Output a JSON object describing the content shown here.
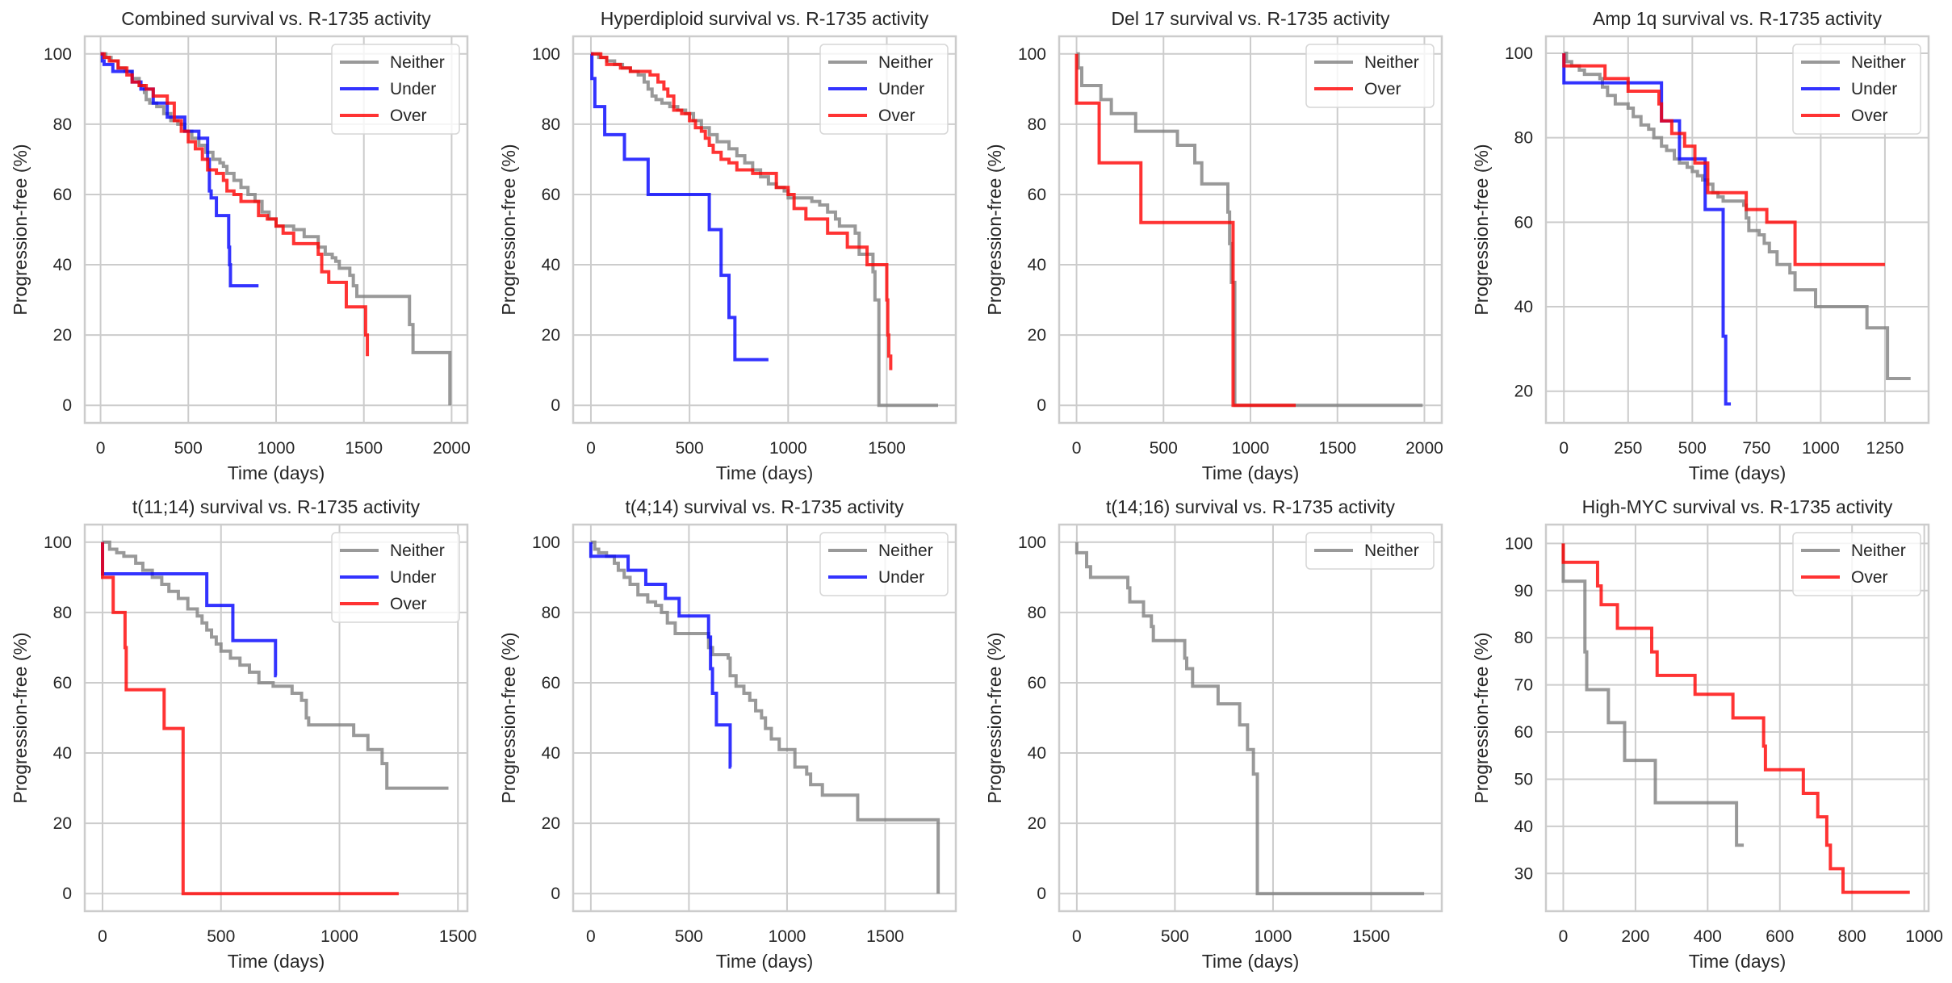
{
  "figure": {
    "series_colors": {
      "Neither": "#808080",
      "Under": "#0000ff",
      "Over": "#ff0000"
    }
  },
  "chart_data": [
    {
      "type": "line",
      "title": "Combined survival vs. R-1735 activity",
      "xlabel": "Time (days)",
      "ylabel": "Progression-free (%)",
      "xlim": [
        -90,
        2090
      ],
      "ylim": [
        -5,
        105
      ],
      "xticks": [
        0,
        500,
        1000,
        1500,
        2000
      ],
      "yticks": [
        0,
        20,
        40,
        60,
        80,
        100
      ],
      "grid": true,
      "legend": "top-right",
      "series": [
        {
          "name": "Neither",
          "x": [
            0,
            30,
            60,
            100,
            140,
            180,
            220,
            250,
            260,
            280,
            320,
            360,
            400,
            440,
            480,
            520,
            560,
            600,
            640,
            680,
            700,
            720,
            760,
            800,
            840,
            880,
            920,
            960,
            1000,
            1080,
            1100,
            1120,
            1160,
            1200,
            1240,
            1280,
            1320,
            1340,
            1360,
            1420,
            1440,
            1460,
            1760,
            1780,
            1990
          ],
          "y": [
            100,
            99,
            98,
            96,
            95,
            93,
            91,
            89,
            87,
            86,
            85,
            83,
            81,
            80,
            78,
            76,
            74,
            72,
            70,
            69,
            68,
            66,
            64,
            62,
            60,
            58,
            55,
            53,
            51,
            51,
            50,
            50,
            48,
            48,
            45,
            43,
            42,
            41,
            39,
            37,
            34,
            31,
            23,
            15,
            0
          ]
        },
        {
          "name": "Under",
          "x": [
            0,
            10,
            20,
            70,
            160,
            180,
            230,
            280,
            300,
            380,
            440,
            480,
            560,
            610,
            620,
            630,
            660,
            700,
            730,
            735,
            740,
            900
          ],
          "y": [
            100,
            98,
            97,
            95,
            95,
            92,
            90,
            90,
            86,
            82,
            82,
            78,
            76,
            70,
            61,
            59,
            54,
            54,
            45,
            40,
            34,
            34
          ]
        },
        {
          "name": "Over",
          "x": [
            0,
            20,
            50,
            100,
            150,
            180,
            220,
            260,
            300,
            380,
            420,
            460,
            500,
            540,
            580,
            610,
            660,
            700,
            720,
            760,
            800,
            840,
            900,
            950,
            1000,
            1040,
            1100,
            1200,
            1240,
            1260,
            1300,
            1400,
            1500,
            1510,
            1520
          ],
          "y": [
            100,
            99,
            98,
            96,
            94,
            92,
            91,
            90,
            88,
            86,
            81,
            78,
            75,
            73,
            70,
            67,
            66,
            64,
            61,
            60,
            58,
            58,
            54,
            53,
            51,
            49,
            46,
            46,
            43,
            38,
            35,
            28,
            28,
            20,
            14
          ]
        }
      ]
    },
    {
      "type": "line",
      "title": "Hyperdiploid survival vs. R-1735 activity",
      "xlabel": "Time (days)",
      "ylabel": "Progression-free (%)",
      "xlim": [
        -90,
        1850
      ],
      "ylim": [
        -5,
        105
      ],
      "xticks": [
        0,
        500,
        1000,
        1500
      ],
      "yticks": [
        0,
        20,
        40,
        60,
        80,
        100
      ],
      "grid": true,
      "legend": "top-right",
      "series": [
        {
          "name": "Neither",
          "x": [
            0,
            40,
            80,
            120,
            160,
            200,
            240,
            270,
            290,
            310,
            330,
            360,
            400,
            440,
            480,
            520,
            560,
            600,
            640,
            700,
            740,
            780,
            820,
            860,
            900,
            940,
            980,
            1000,
            1100,
            1120,
            1160,
            1200,
            1240,
            1260,
            1300,
            1340,
            1360,
            1420,
            1430,
            1440,
            1460,
            1760
          ],
          "y": [
            100,
            99,
            98,
            97,
            96,
            95,
            94,
            92,
            90,
            88,
            87,
            86,
            85,
            84,
            83,
            81,
            79,
            77,
            75,
            73,
            71,
            69,
            67,
            65,
            63,
            62,
            61,
            59,
            59,
            58,
            57,
            55,
            53,
            51,
            51,
            49,
            43,
            43,
            38,
            30,
            0,
            0
          ]
        },
        {
          "name": "Under",
          "x": [
            0,
            5,
            20,
            70,
            170,
            290,
            600,
            660,
            700,
            730,
            900
          ],
          "y": [
            100,
            93,
            85,
            77,
            70,
            60,
            50,
            37,
            25,
            13,
            13
          ]
        },
        {
          "name": "Over",
          "x": [
            0,
            50,
            80,
            150,
            200,
            300,
            340,
            370,
            390,
            420,
            460,
            500,
            530,
            560,
            580,
            600,
            620,
            660,
            700,
            740,
            820,
            880,
            940,
            1000,
            1030,
            1090,
            1200,
            1300,
            1400,
            1500,
            1505,
            1510,
            1520
          ],
          "y": [
            100,
            99,
            97,
            96,
            95,
            94,
            92,
            90,
            88,
            84,
            83,
            81,
            79,
            78,
            76,
            74,
            72,
            70,
            69,
            67,
            66,
            66,
            62,
            60,
            56,
            53,
            49,
            45,
            40,
            30,
            20,
            14,
            10
          ]
        }
      ]
    },
    {
      "type": "line",
      "title": "Del 17 survival vs. R-1735 activity",
      "xlabel": "Time (days)",
      "ylabel": "Progression-free (%)",
      "xlim": [
        -100,
        2100
      ],
      "ylim": [
        -5,
        105
      ],
      "xticks": [
        0,
        500,
        1000,
        1500,
        2000
      ],
      "yticks": [
        0,
        20,
        40,
        60,
        80,
        100
      ],
      "grid": true,
      "legend": "top-right",
      "series": [
        {
          "name": "Neither",
          "x": [
            0,
            10,
            30,
            140,
            200,
            340,
            580,
            680,
            720,
            870,
            880,
            890,
            910,
            1990
          ],
          "y": [
            100,
            96,
            91,
            87,
            83,
            78,
            74,
            69,
            63,
            55,
            46,
            35,
            0,
            0
          ]
        },
        {
          "name": "Over",
          "x": [
            0,
            130,
            370,
            900,
            1260
          ],
          "y": [
            86,
            69,
            52,
            0,
            0
          ]
        }
      ]
    },
    {
      "type": "line",
      "title": "Amp 1q survival vs. R-1735 activity",
      "xlabel": "Time (days)",
      "ylabel": "Progression-free (%)",
      "xlim": [
        -70,
        1420
      ],
      "ylim": [
        12.5,
        104
      ],
      "xticks": [
        0,
        250,
        500,
        750,
        1000,
        1250
      ],
      "yticks": [
        20,
        40,
        60,
        80,
        100
      ],
      "grid": true,
      "legend": "top-right",
      "series": [
        {
          "name": "Neither",
          "x": [
            0,
            10,
            30,
            60,
            80,
            140,
            150,
            170,
            200,
            250,
            270,
            300,
            330,
            350,
            380,
            400,
            430,
            450,
            480,
            500,
            520,
            540,
            560,
            580,
            600,
            620,
            640,
            700,
            710,
            720,
            760,
            780,
            800,
            830,
            880,
            900,
            980,
            1180,
            1260,
            1350
          ],
          "y": [
            100,
            98,
            97,
            96,
            95,
            94,
            92,
            90,
            88,
            87,
            85,
            83,
            82,
            80,
            78,
            77,
            75,
            74,
            73,
            72,
            71,
            70,
            69,
            67,
            66,
            65,
            65,
            64,
            61,
            58,
            57,
            55,
            53,
            50,
            48,
            44,
            40,
            35,
            23,
            23
          ]
        },
        {
          "name": "Under",
          "x": [
            0,
            380,
            450,
            550,
            620,
            630,
            650
          ],
          "y": [
            93,
            84,
            75,
            63,
            33,
            17,
            17
          ]
        },
        {
          "name": "Over",
          "x": [
            0,
            160,
            250,
            370,
            380,
            420,
            470,
            510,
            560,
            710,
            790,
            900,
            1250
          ],
          "y": [
            97,
            94,
            91,
            88,
            84,
            81,
            78,
            74,
            67,
            63,
            60,
            50,
            50
          ]
        }
      ]
    },
    {
      "type": "line",
      "title": "t(11;14) survival vs. R-1735 activity",
      "xlabel": "Time (days)",
      "ylabel": "Progression-free (%)",
      "xlim": [
        -75,
        1540
      ],
      "ylim": [
        -5,
        105
      ],
      "xticks": [
        0,
        500,
        1000,
        1500
      ],
      "yticks": [
        0,
        20,
        40,
        60,
        80,
        100
      ],
      "grid": true,
      "legend": "top-right",
      "series": [
        {
          "name": "Neither",
          "x": [
            0,
            30,
            60,
            90,
            140,
            170,
            210,
            250,
            280,
            320,
            360,
            400,
            420,
            440,
            460,
            480,
            500,
            540,
            580,
            620,
            660,
            720,
            800,
            840,
            860,
            870,
            1060,
            1120,
            1180,
            1200,
            1460
          ],
          "y": [
            100,
            98,
            97,
            96,
            94,
            92,
            90,
            88,
            86,
            84,
            81,
            79,
            77,
            75,
            73,
            71,
            69,
            67,
            65,
            63,
            60,
            59,
            57,
            55,
            50,
            48,
            45,
            41,
            37,
            30,
            30
          ]
        },
        {
          "name": "Under",
          "x": [
            0,
            440,
            550,
            730,
            735
          ],
          "y": [
            91,
            82,
            72,
            62,
            62
          ]
        },
        {
          "name": "Over",
          "x": [
            0,
            45,
            95,
            100,
            260,
            340,
            1250
          ],
          "y": [
            90,
            80,
            70,
            58,
            47,
            0,
            0
          ]
        }
      ]
    },
    {
      "type": "line",
      "title": "t(4;14) survival vs. R-1735 activity",
      "xlabel": "Time (days)",
      "ylabel": "Progression-free (%)",
      "xlim": [
        -90,
        1860
      ],
      "ylim": [
        -5,
        105
      ],
      "xticks": [
        0,
        500,
        1000,
        1500
      ],
      "yticks": [
        0,
        20,
        40,
        60,
        80,
        100
      ],
      "grid": true,
      "legend": "top-right",
      "series": [
        {
          "name": "Neither",
          "x": [
            0,
            20,
            40,
            80,
            120,
            140,
            170,
            200,
            240,
            290,
            330,
            360,
            390,
            430,
            580,
            600,
            620,
            700,
            710,
            740,
            780,
            810,
            840,
            870,
            890,
            920,
            960,
            1040,
            1100,
            1120,
            1180,
            1360,
            1770
          ],
          "y": [
            100,
            98,
            97,
            96,
            94,
            92,
            90,
            88,
            85,
            83,
            82,
            80,
            77,
            74,
            74,
            70,
            68,
            67,
            62,
            59,
            57,
            55,
            52,
            50,
            47,
            44,
            41,
            36,
            34,
            31,
            28,
            21,
            0
          ]
        },
        {
          "name": "Under",
          "x": [
            0,
            190,
            280,
            380,
            450,
            600,
            610,
            620,
            640,
            710,
            715
          ],
          "y": [
            96,
            92,
            88,
            84,
            79,
            73,
            64,
            57,
            48,
            36,
            36
          ]
        }
      ]
    },
    {
      "type": "line",
      "title": "t(14;16) survival vs. R-1735 activity",
      "xlabel": "Time (days)",
      "ylabel": "Progression-free (%)",
      "xlim": [
        -90,
        1860
      ],
      "ylim": [
        -5,
        105
      ],
      "xticks": [
        0,
        500,
        1000,
        1500
      ],
      "yticks": [
        0,
        20,
        40,
        60,
        80,
        100
      ],
      "grid": true,
      "legend": "top-right",
      "series": [
        {
          "name": "Neither",
          "x": [
            0,
            50,
            60,
            70,
            260,
            270,
            340,
            380,
            390,
            550,
            560,
            590,
            720,
            830,
            870,
            900,
            910,
            920,
            1770
          ],
          "y": [
            97,
            93,
            93,
            90,
            87,
            83,
            79,
            76,
            72,
            67,
            64,
            59,
            54,
            48,
            41,
            34,
            34,
            0,
            0
          ]
        }
      ]
    },
    {
      "type": "line",
      "title": "High-MYC survival vs. R-1735 activity",
      "xlabel": "Time (days)",
      "ylabel": "Progression-free (%)",
      "xlim": [
        -48,
        1012
      ],
      "ylim": [
        22,
        104
      ],
      "xticks": [
        0,
        200,
        400,
        600,
        800,
        1000
      ],
      "yticks": [
        30,
        40,
        50,
        60,
        70,
        80,
        90,
        100
      ],
      "grid": true,
      "legend": "top-right",
      "series": [
        {
          "name": "Neither",
          "x": [
            0,
            60,
            65,
            125,
            170,
            255,
            480,
            500
          ],
          "y": [
            92,
            77,
            69,
            62,
            54,
            45,
            36,
            36
          ]
        },
        {
          "name": "Over",
          "x": [
            0,
            95,
            105,
            150,
            245,
            260,
            365,
            470,
            555,
            560,
            665,
            705,
            730,
            740,
            775,
            960
          ],
          "y": [
            96,
            91,
            87,
            82,
            77,
            72,
            68,
            63,
            57,
            52,
            47,
            42,
            36,
            31,
            26,
            26
          ]
        }
      ]
    }
  ]
}
